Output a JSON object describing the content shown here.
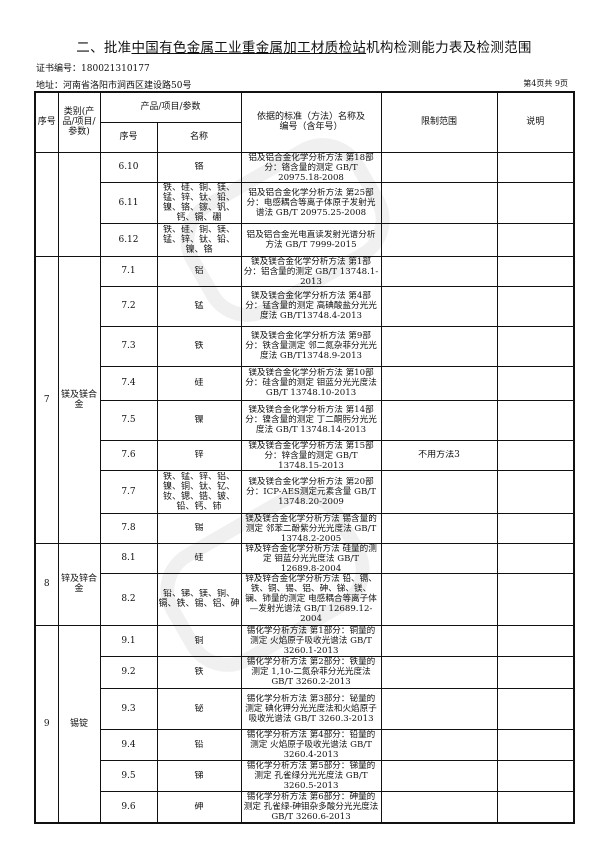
{
  "document": {
    "title_prefix": "二、批准",
    "title_org": "中国有色金属工业重金属加工材质检站",
    "title_suffix": "机构检测能力表及检测范围",
    "cert_label": "证书编号：",
    "cert_no": "180021310177",
    "address_label": "地址：",
    "address": "河南省洛阳市涧西区建设路50号",
    "page_info": "第4页共 9页"
  },
  "table": {
    "headers": {
      "seq": "序号",
      "category": "类别(产品/项目/参数)",
      "product_group": "产品/项目/参数",
      "sub_seq": "序号",
      "name": "名称",
      "standard": "依据的标准（方法）名称及编号（含年号）",
      "limit": "限制范围",
      "note": "说明"
    },
    "groups": [
      {
        "seq": "",
        "category": "",
        "rows": [
          {
            "no": "6.10",
            "name": "铬",
            "standard": "铝及铝合金化学分析方法 第18部分：铬含量的测定 GB/T 20975.18-2008",
            "limit": "",
            "note": ""
          },
          {
            "no": "6.11",
            "name": "铁、硅、铜、镁、锰、锌、钛、铅、镍、铬、镓、钒、钙、镉、硼",
            "standard": "铝及铝合金化学分析方法 第25部分：电感耦合等离子体原子发射光谱法 GB/T 20975.25-2008",
            "limit": "",
            "note": ""
          },
          {
            "no": "6.12",
            "name": "铁、硅、铜、镁、锰、锌、钛、铅、镍、铬",
            "standard": "铝及铝合金光电直读发射光谱分析方法 GB/T 7999-2015",
            "limit": "",
            "note": ""
          }
        ]
      },
      {
        "seq": "7",
        "category": "镁及镁合金",
        "rows": [
          {
            "no": "7.1",
            "name": "铝",
            "standard": "镁及镁合金化学分析方法 第1部分：铝含量的测定 GB/T 13748.1-2013",
            "limit": "",
            "note": ""
          },
          {
            "no": "7.2",
            "name": "锰",
            "standard": "镁及镁合金化学分析方法 第4部分：锰含量的测定 高碘酸盐分光光度法 GB/T13748.4-2013",
            "limit": "",
            "note": ""
          },
          {
            "no": "7.3",
            "name": "铁",
            "standard": "镁及镁合金化学分析方法 第9部分：铁含量测定 邻二氮杂菲分光光度法 GB/T13748.9-2013",
            "limit": "",
            "note": ""
          },
          {
            "no": "7.4",
            "name": "硅",
            "standard": "镁及镁合金化学分析方法 第10部分：硅含量的测定 钼蓝分光光度法 GB/T 13748.10-2013",
            "limit": "",
            "note": ""
          },
          {
            "no": "7.5",
            "name": "镍",
            "standard": "镁及镁合金化学分析方法 第14部分：镍含量的测定 丁二酮肟分光光度法 GB/T 13748.14-2013",
            "limit": "",
            "note": ""
          },
          {
            "no": "7.6",
            "name": "锌",
            "standard": "镁及镁合金化学分析方法 第15部分：锌含量的测定 GB/T 13748.15-2013",
            "limit": "不用方法3",
            "note": ""
          },
          {
            "no": "7.7",
            "name": "铁、锰、锌、铝、镍、铜、钛、钇、钕、锶、锆、铍、铅、钙、铈",
            "standard": "镁及镁合金化学分析方法 第20部分：ICP-AES测定元素含量 GB/T 13748.20-2009",
            "limit": "",
            "note": ""
          },
          {
            "no": "7.8",
            "name": "锡",
            "standard": "镁及镁合金化学分析方法 锡含量的测定 邻苯二酚紫分光光度法 GB/T 13748.2-2005",
            "limit": "",
            "note": ""
          }
        ]
      },
      {
        "seq": "8",
        "category": "锌及锌合金",
        "rows": [
          {
            "no": "8.1",
            "name": "硅",
            "standard": "锌及锌合金化学分析方法 硅量的测定 钼蓝分光光度法 GB/T 12689.8-2004",
            "limit": "",
            "note": ""
          },
          {
            "no": "8.2",
            "name": "铅、锑、镁、铜、镉、铁、锡、铝、砷",
            "standard": "锌及锌合金化学分析方法 铅、镉、铁、铜、锡、铝、砷、锑、镁、镧、铈量的测定 电感耦合等离子体—发射光谱法 GB/T 12689.12-2004",
            "limit": "",
            "note": ""
          }
        ]
      },
      {
        "seq": "9",
        "category": "锡锭",
        "rows": [
          {
            "no": "9.1",
            "name": "铜",
            "standard": "锡化学分析方法 第1部分：铜量的测定 火焰原子吸收光谱法 GB/T 3260.1-2013",
            "limit": "",
            "note": ""
          },
          {
            "no": "9.2",
            "name": "铁",
            "standard": "锡化学分析方法 第2部分：铁量的测定 1,10-二氮杂菲分光光度法 GB/T 3260.2-2013",
            "limit": "",
            "note": ""
          },
          {
            "no": "9.3",
            "name": "铋",
            "standard": "锡化学分析方法 第3部分：铋量的测定 碘化钾分光光度法和火焰原子吸收光谱法 GB/T 3260.3-2013",
            "limit": "",
            "note": ""
          },
          {
            "no": "9.4",
            "name": "铅",
            "standard": "锡化学分析方法 第4部分：铅量的测定 火焰原子吸收光谱法 GB/T 3260.4-2013",
            "limit": "",
            "note": ""
          },
          {
            "no": "9.5",
            "name": "锑",
            "standard": "锡化学分析方法 第5部分：锑量的测定 孔雀绿分光光度法 GB/T 3260.5-2013",
            "limit": "",
            "note": ""
          },
          {
            "no": "9.6",
            "name": "砷",
            "standard": "锡化学分析方法 第6部分：砷量的测定 孔雀绿-砷钼杂多酸分光光度法 GB/T 3260.6-2013",
            "limit": "",
            "note": ""
          }
        ]
      }
    ]
  },
  "watermark": {
    "text": "资质认证",
    "mark": "MA",
    "color": "#9a9a9a"
  }
}
